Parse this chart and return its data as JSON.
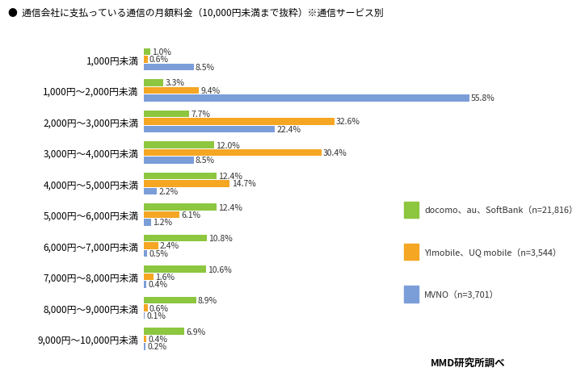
{
  "title": "●  通信会社に支払っている通信の月額料金（10,000円未満まで抜粋）※通信サービス別",
  "categories": [
    "1,000円未満",
    "1,000円～2,000円未満",
    "2,000円～3,000円未満",
    "3,000円～4,000円未満",
    "4,000円～5,000円未満",
    "5,000円～6,000円未満",
    "6,000円～7,000円未満",
    "7,000円～8,000円未満",
    "8,000円～9,000円未満",
    "9,000円～10,000円未満"
  ],
  "series": {
    "docomo": [
      1.0,
      3.3,
      7.7,
      12.0,
      12.4,
      12.4,
      10.8,
      10.6,
      8.9,
      6.9
    ],
    "ymobile": [
      0.6,
      9.4,
      32.6,
      30.4,
      14.7,
      6.1,
      2.4,
      1.6,
      0.6,
      0.4
    ],
    "mvno": [
      8.5,
      55.8,
      22.4,
      8.5,
      2.2,
      1.2,
      0.5,
      0.4,
      0.1,
      0.2
    ]
  },
  "colors": {
    "docomo": "#8dc63f",
    "ymobile": "#f5a623",
    "mvno": "#7B9ED9"
  },
  "legend": {
    "docomo": "docomo、au、SoftBank（n=21,816）",
    "ymobile": "Y!mobile、UQ mobile（n=3,544）",
    "mvno": "MVNO（n=3,701）"
  },
  "footer": "MMD研究所調べ",
  "xlim": [
    0,
    62
  ],
  "bar_height": 0.22,
  "bar_gap": 0.025
}
